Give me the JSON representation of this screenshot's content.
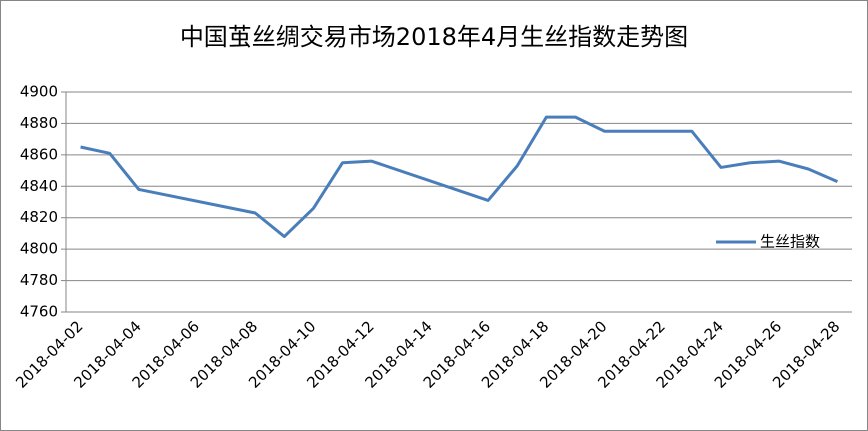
{
  "chart_data": {
    "type": "line",
    "title": "中国茧丝绸交易市场2018年4月生丝指数走势图",
    "x": [
      "2018-04-02",
      "2018-04-03",
      "2018-04-04",
      "2018-04-08",
      "2018-04-09",
      "2018-04-10",
      "2018-04-11",
      "2018-04-12",
      "2018-04-16",
      "2018-04-17",
      "2018-04-18",
      "2018-04-19",
      "2018-04-20",
      "2018-04-23",
      "2018-04-24",
      "2018-04-25",
      "2018-04-26",
      "2018-04-27",
      "2018-04-28"
    ],
    "series": [
      {
        "name": "生丝指数",
        "color": "#4a7ebb",
        "values": [
          4865,
          4861,
          4838,
          4823,
          4808,
          4826,
          4855,
          4856,
          4831,
          4853,
          4884,
          4884,
          4875,
          4875,
          4852,
          4855,
          4856,
          4851,
          4843
        ]
      }
    ],
    "xlim": [
      "2018-04-02",
      "2018-04-28"
    ],
    "xticks": [
      "2018-04-02",
      "2018-04-04",
      "2018-04-06",
      "2018-04-08",
      "2018-04-10",
      "2018-04-12",
      "2018-04-14",
      "2018-04-16",
      "2018-04-18",
      "2018-04-20",
      "2018-04-22",
      "2018-04-24",
      "2018-04-26",
      "2018-04-28"
    ],
    "ylim": [
      4760,
      4900
    ],
    "yticks": [
      4760,
      4780,
      4800,
      4820,
      4840,
      4860,
      4880,
      4900
    ],
    "grid": true,
    "legend": "right"
  }
}
